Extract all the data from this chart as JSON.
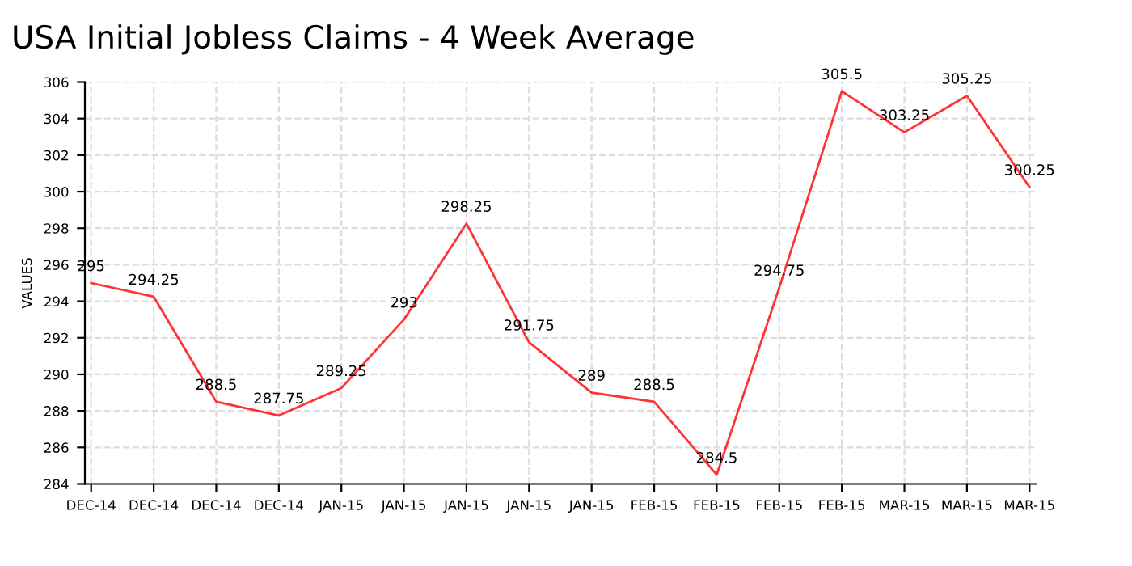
{
  "chart_data": {
    "type": "line",
    "title": "USA Initial Jobless Claims - 4 Week Average",
    "ylabel": "VALUES",
    "categories": [
      "DEC-14",
      "DEC-14",
      "DEC-14",
      "DEC-14",
      "JAN-15",
      "JAN-15",
      "JAN-15",
      "JAN-15",
      "JAN-15",
      "FEB-15",
      "FEB-15",
      "FEB-15",
      "FEB-15",
      "MAR-15",
      "MAR-15",
      "MAR-15"
    ],
    "series": [
      {
        "color": "#ff3333",
        "values": [
          295,
          294.25,
          288.5,
          287.75,
          289.25,
          293,
          298.25,
          291.75,
          289,
          288.5,
          284.5,
          294.75,
          305.5,
          303.25,
          305.25,
          300.25
        ]
      }
    ],
    "ylim": [
      284,
      306
    ],
    "yticks": [
      284,
      286,
      288,
      290,
      292,
      294,
      296,
      298,
      300,
      302,
      304,
      306
    ],
    "grid": true,
    "data_labels": true,
    "marker": "none",
    "line_style": "solid",
    "legend": false
  }
}
